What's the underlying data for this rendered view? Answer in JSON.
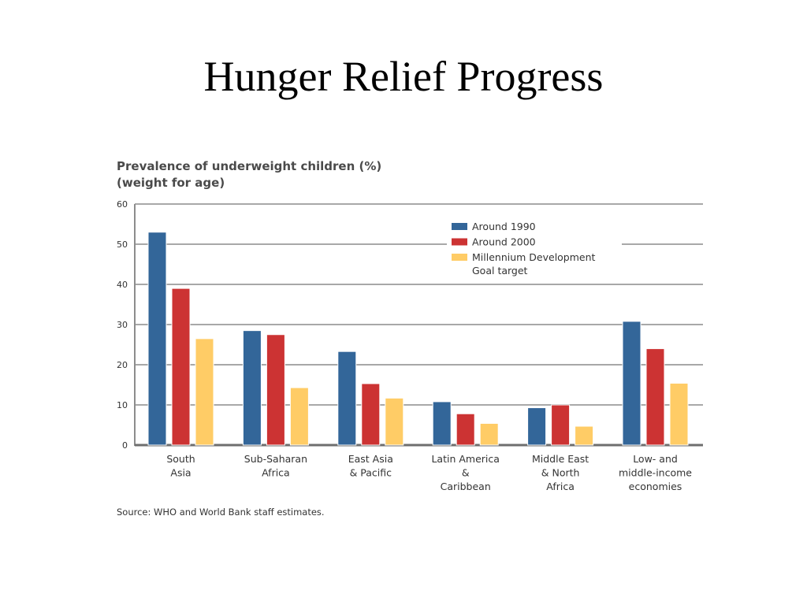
{
  "slide": {
    "title": "Hunger Relief Progress"
  },
  "chart_data": {
    "type": "bar",
    "title_lines": [
      "Prevalence of underweight children (%)",
      "(weight for age)"
    ],
    "categories": [
      [
        "South",
        "Asia"
      ],
      [
        "Sub-Saharan",
        "Africa"
      ],
      [
        "East Asia",
        "& Pacific"
      ],
      [
        "Latin America",
        "&",
        "Caribbean"
      ],
      [
        "Middle East",
        "& North",
        "Africa"
      ],
      [
        "Low- and",
        "middle-income",
        "economies"
      ]
    ],
    "series": [
      {
        "name": "Around 1990",
        "color": "#336699",
        "values": [
          53,
          28.5,
          23.3,
          10.8,
          9.3,
          30.8
        ]
      },
      {
        "name": "Around 2000",
        "color": "#cc3333",
        "values": [
          39,
          27.5,
          15.3,
          7.8,
          10,
          24
        ]
      },
      {
        "name": "Millennium Development Goal target",
        "legend_lines": [
          "Millennium Development",
          "Goal target"
        ],
        "color": "#ffcc66",
        "values": [
          26.5,
          14.3,
          11.7,
          5.4,
          4.7,
          15.4
        ]
      }
    ],
    "y_ticks": [
      0,
      10,
      20,
      30,
      40,
      50,
      60
    ],
    "ylim": [
      0,
      60
    ],
    "grid": true,
    "legend_position": "top-right",
    "source": "Source: WHO and World Bank staff estimates."
  }
}
